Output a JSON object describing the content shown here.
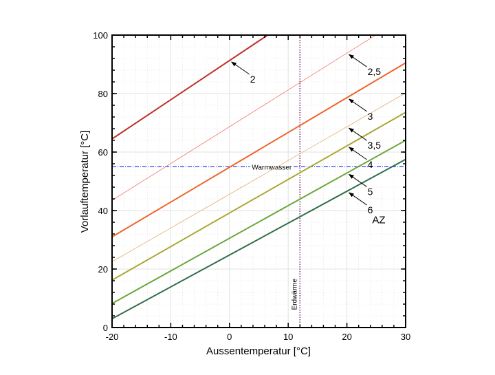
{
  "chart_data": {
    "type": "line",
    "title": "",
    "xlabel": "Aussentemperatur [°C]",
    "ylabel": "Vorlauftemperatur [°C]",
    "xlim": [
      -20,
      30
    ],
    "ylim": [
      0,
      100
    ],
    "xticks": [
      -20,
      -10,
      0,
      10,
      20,
      30
    ],
    "yticks": [
      0,
      20,
      40,
      60,
      80,
      100
    ],
    "grid": true,
    "series": [
      {
        "name": "2",
        "color": "#c0302a",
        "width": 2,
        "points": [
          [
            -20,
            64.5
          ],
          [
            6.5,
            100
          ]
        ],
        "label_at_x": 0
      },
      {
        "name": "2,5",
        "color": "#f07a6e",
        "width": 0.8,
        "points": [
          [
            -20,
            43.5
          ],
          [
            24.9,
            100
          ]
        ],
        "label_at_x": 20
      },
      {
        "name": "3",
        "color": "#f0642a",
        "width": 2,
        "points": [
          [
            -20,
            31
          ],
          [
            30,
            90.5
          ]
        ],
        "label_at_x": 20
      },
      {
        "name": "3,5",
        "color": "#e0b070",
        "width": 0.8,
        "points": [
          [
            -20,
            22.5
          ],
          [
            30,
            80.2
          ]
        ],
        "label_at_x": 20
      },
      {
        "name": "4",
        "color": "#a8a832",
        "width": 2,
        "points": [
          [
            -20,
            16.2
          ],
          [
            30,
            73.6
          ]
        ],
        "label_at_x": 20
      },
      {
        "name": "5",
        "color": "#6aa83a",
        "width": 2,
        "points": [
          [
            -20,
            8.2
          ],
          [
            30,
            64
          ]
        ],
        "label_at_x": 20
      },
      {
        "name": "6",
        "color": "#2e6e48",
        "width": 2,
        "points": [
          [
            -20,
            3
          ],
          [
            30,
            57.5
          ]
        ],
        "label_at_x": 20
      }
    ],
    "reference_lines": [
      {
        "name": "Warmwasser",
        "orientation": "horizontal",
        "value": 55,
        "color": "#2a3cf0"
      },
      {
        "name": "Erdwärme",
        "orientation": "vertical",
        "value": 12,
        "color": "#7a1a6a"
      }
    ],
    "annotations": [
      {
        "text": "AZ",
        "x": 24.3,
        "y": 35.6
      }
    ]
  }
}
